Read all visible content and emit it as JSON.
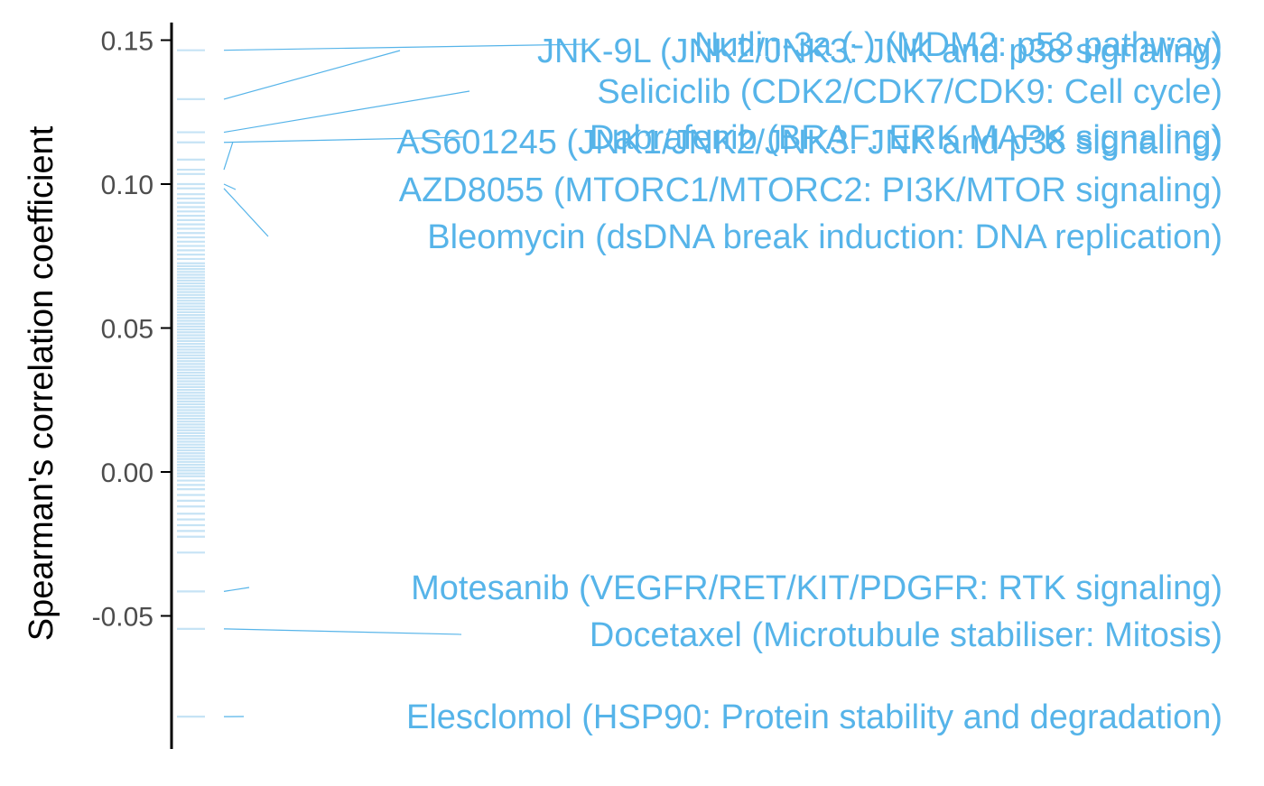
{
  "chart_data": {
    "type": "scatter",
    "title": "",
    "xlabel": "",
    "ylabel": "Spearman's correlation coefficient",
    "ylim": [
      -0.095,
      0.157
    ],
    "yticks": [
      0.15,
      0.1,
      0.05,
      0.0,
      -0.05
    ],
    "ytick_labels": [
      "0.15",
      "0.10",
      "0.05",
      "0.00",
      "-0.05"
    ],
    "grid": false,
    "legend": "none",
    "colors": {
      "rug": "#4da9e0",
      "label": "#56b4e9",
      "axis": "#000000",
      "tick_text": "#4d4d4d"
    },
    "labeled_points": [
      {
        "label": "Nutlin-3a (-) (MDM2: p53 pathway)",
        "value": 0.1465
      },
      {
        "label": "JNK-9L (JNK2/JNK3: JNK and p38 signaling)",
        "value": 0.1295
      },
      {
        "label": "Seliciclib (CDK2/CDK7/CDK9: Cell cycle)",
        "value": 0.118
      },
      {
        "label": "Dabrafenib (BRAF: ERK MAPK signaling)",
        "value": 0.1145
      },
      {
        "label": "AS601245 (JNK1/JNK2/JNK3: JNK and p38 signaling)",
        "value": 0.105
      },
      {
        "label": "AZD8055 (MTORC1/MTORC2: PI3K/MTOR signaling)",
        "value": 0.1
      },
      {
        "label": "Bleomycin (dsDNA break induction: DNA replication)",
        "value": 0.0985
      },
      {
        "label": "Motesanib (VEGFR/RET/KIT/PDGFR: RTK signaling)",
        "value": -0.0415
      },
      {
        "label": "Docetaxel (Microtubule stabiliser: Mitosis)",
        "value": -0.0545
      },
      {
        "label": "Elesclomol (HSP90: Protein stability and degradation)",
        "value": -0.085
      }
    ],
    "rug_values": [
      0.1465,
      0.1295,
      0.118,
      0.1145,
      0.1085,
      0.105,
      0.1035,
      0.1,
      0.0985,
      0.0965,
      0.095,
      0.0935,
      0.092,
      0.0905,
      0.089,
      0.0875,
      0.086,
      0.0845,
      0.083,
      0.0815,
      0.08,
      0.0785,
      0.077,
      0.0755,
      0.074,
      0.0725,
      0.0715,
      0.0705,
      0.0695,
      0.0685,
      0.0675,
      0.0665,
      0.0655,
      0.0645,
      0.0635,
      0.0625,
      0.0615,
      0.0605,
      0.0595,
      0.0585,
      0.0575,
      0.0565,
      0.0555,
      0.0545,
      0.0535,
      0.0525,
      0.0515,
      0.0505,
      0.0495,
      0.0485,
      0.0475,
      0.0465,
      0.0455,
      0.0445,
      0.0435,
      0.0425,
      0.0415,
      0.0405,
      0.0395,
      0.0385,
      0.0375,
      0.0365,
      0.0355,
      0.0345,
      0.0335,
      0.0325,
      0.0315,
      0.0305,
      0.0295,
      0.0285,
      0.0275,
      0.0265,
      0.0255,
      0.0245,
      0.0235,
      0.0225,
      0.0215,
      0.0205,
      0.0195,
      0.0185,
      0.0175,
      0.0165,
      0.0155,
      0.0145,
      0.0135,
      0.0125,
      0.0115,
      0.0105,
      0.0095,
      0.0085,
      0.0075,
      0.0065,
      0.0055,
      0.0045,
      0.0035,
      0.0025,
      0.0015,
      0.0005,
      -0.0005,
      -0.0015,
      -0.003,
      -0.0045,
      -0.006,
      -0.008,
      -0.01,
      -0.012,
      -0.0145,
      -0.0165,
      -0.0185,
      -0.0205,
      -0.0225,
      -0.028,
      -0.0415,
      -0.0545,
      -0.085
    ]
  }
}
